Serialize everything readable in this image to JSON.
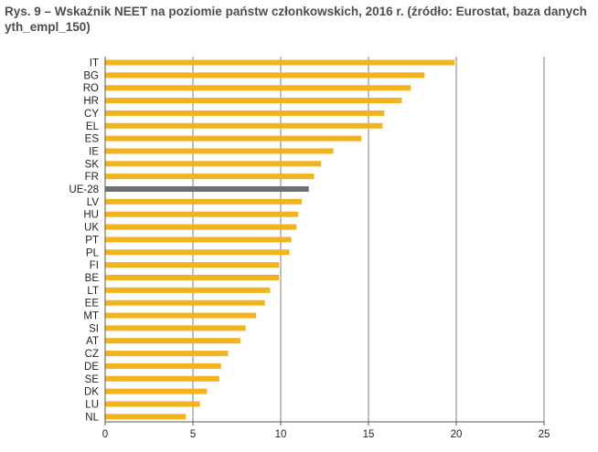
{
  "caption": "Rys. 9 – Wskaźnik NEET na poziomie państw członkowskich, 2016 r. (źródło: Eurostat, baza danych yth_empl_150)",
  "chart_data": {
    "type": "bar",
    "orientation": "horizontal",
    "title": "Rys. 9 – Wskaźnik NEET na poziomie państw członkowskich, 2016 r. (źródło: Eurostat, baza danych yth_empl_150)",
    "xlabel": "",
    "ylabel": "",
    "xlim": [
      0,
      25
    ],
    "xticks": [
      0,
      5,
      10,
      15,
      20,
      25
    ],
    "grid": "vertical",
    "legend": "none",
    "categories": [
      "IT",
      "BG",
      "RO",
      "HR",
      "CY",
      "EL",
      "ES",
      "IE",
      "SK",
      "FR",
      "UE-28",
      "LV",
      "HU",
      "UK",
      "PT",
      "PL",
      "FI",
      "BE",
      "LT",
      "EE",
      "MT",
      "SI",
      "AT",
      "CZ",
      "DE",
      "SE",
      "DK",
      "LU",
      "NL"
    ],
    "values": [
      19.9,
      18.2,
      17.4,
      16.9,
      15.9,
      15.8,
      14.6,
      13.0,
      12.3,
      11.9,
      11.6,
      11.2,
      11.0,
      10.9,
      10.6,
      10.5,
      9.9,
      9.9,
      9.4,
      9.1,
      8.6,
      8.0,
      7.7,
      7.0,
      6.6,
      6.5,
      5.8,
      5.4,
      4.6
    ],
    "highlight_category": "UE-28",
    "colors": {
      "bar": "#f2b31f",
      "highlight": "#6e6f71",
      "grid": "#7f7f7f",
      "axis": "#5a5a5a"
    }
  }
}
